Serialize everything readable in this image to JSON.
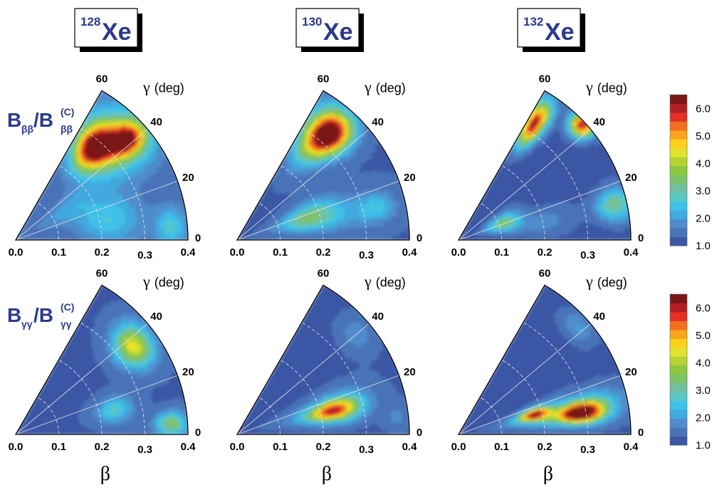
{
  "chart_data": {
    "type": "heatmap",
    "description_axes": {
      "radial_label": "β",
      "angular_label": "γ",
      "angular_unit": "(deg)",
      "radial_ticks": [
        "0.0",
        "0.1",
        "0.2",
        "0.3",
        "0.4"
      ],
      "angular_ticks": [
        "0",
        "20",
        "40",
        "60"
      ],
      "radial_range": [
        0,
        0.4
      ],
      "angular_range_deg": [
        0,
        60
      ]
    },
    "columns": [
      {
        "mass": "128",
        "element": "Xe"
      },
      {
        "mass": "130",
        "element": "Xe"
      },
      {
        "mass": "132",
        "element": "Xe"
      }
    ],
    "rows": [
      {
        "main": "B",
        "sub": "ββ",
        "sep": "/B",
        "sup": "(C)",
        "sub2": "ββ"
      },
      {
        "main": "B",
        "sub": "γγ",
        "sep": "/B",
        "sup": "(C)",
        "sub2": "γγ"
      }
    ],
    "colorbar": {
      "ticks": [
        "1.0",
        "2.0",
        "3.0",
        "4.0",
        "5.0",
        "6.0"
      ],
      "range": [
        1.0,
        6.5
      ],
      "colors": [
        "#3b57a5",
        "#4a73b8",
        "#4f8ccb",
        "#42a9de",
        "#3fc1e8",
        "#5ac7c5",
        "#72c0a0",
        "#7cc36a",
        "#8dc63f",
        "#b5d335",
        "#e3e22e",
        "#fbd11b",
        "#f8a51b",
        "#f37021",
        "#e43127",
        "#b21f24",
        "#7a1618"
      ]
    },
    "panels": [
      {
        "column": "128",
        "row": "ββ",
        "background": 1.4,
        "peaks": [
          {
            "beta": 0.28,
            "gamma": 50,
            "value": 6.1,
            "spread_b": 0.04,
            "spread_g": 6
          },
          {
            "beta": 0.35,
            "gamma": 42,
            "value": 4.8,
            "spread_b": 0.03,
            "spread_g": 4
          },
          {
            "beta": 0.32,
            "gamma": 44,
            "value": 3.6,
            "spread_b": 0.06,
            "spread_g": 9
          },
          {
            "beta": 0.22,
            "gamma": 12,
            "value": 2.6,
            "spread_b": 0.05,
            "spread_g": 9
          },
          {
            "beta": 0.36,
            "gamma": 5,
            "value": 2.7,
            "spread_b": 0.025,
            "spread_g": 5
          },
          {
            "beta": 0.15,
            "gamma": 30,
            "value": 2.2,
            "spread_b": 0.06,
            "spread_g": 8
          }
        ]
      },
      {
        "column": "130",
        "row": "ββ",
        "background": 1.3,
        "peaks": [
          {
            "beta": 0.33,
            "gamma": 48,
            "value": 5.3,
            "spread_b": 0.035,
            "spread_g": 5
          },
          {
            "beta": 0.3,
            "gamma": 52,
            "value": 4.5,
            "spread_b": 0.05,
            "spread_g": 6
          },
          {
            "beta": 0.17,
            "gamma": 18,
            "value": 3.2,
            "spread_b": 0.05,
            "spread_g": 7
          },
          {
            "beta": 0.33,
            "gamma": 13,
            "value": 2.3,
            "spread_b": 0.03,
            "spread_g": 4
          },
          {
            "beta": 0.25,
            "gamma": 14,
            "value": 1.9,
            "spread_b": 0.07,
            "spread_g": 6
          }
        ]
      },
      {
        "column": "132",
        "row": "ββ",
        "background": 1.2,
        "peaks": [
          {
            "beta": 0.32,
            "gamma": 57,
            "value": 6.2,
            "spread_b": 0.04,
            "spread_g": 3
          },
          {
            "beta": 0.39,
            "gamma": 43,
            "value": 6.0,
            "spread_b": 0.02,
            "spread_g": 3
          },
          {
            "beta": 0.11,
            "gamma": 21,
            "value": 3.4,
            "spread_b": 0.03,
            "spread_g": 7
          },
          {
            "beta": 0.37,
            "gamma": 13,
            "value": 3.3,
            "spread_b": 0.03,
            "spread_g": 4
          },
          {
            "beta": 0.2,
            "gamma": 12,
            "value": 1.8,
            "spread_b": 0.05,
            "spread_g": 6
          }
        ]
      },
      {
        "column": "128",
        "row": "γγ",
        "background": 1.3,
        "peaks": [
          {
            "beta": 0.34,
            "gamma": 37,
            "value": 4.5,
            "spread_b": 0.03,
            "spread_g": 6
          },
          {
            "beta": 0.235,
            "gamma": 14,
            "value": 2.8,
            "spread_b": 0.03,
            "spread_g": 5
          },
          {
            "beta": 0.36,
            "gamma": 4,
            "value": 3.6,
            "spread_b": 0.025,
            "spread_g": 3
          }
        ]
      },
      {
        "column": "130",
        "row": "γγ",
        "background": 1.2,
        "peaks": [
          {
            "beta": 0.23,
            "gamma": 14,
            "value": 5.2,
            "spread_b": 0.04,
            "spread_g": 4
          },
          {
            "beta": 0.21,
            "gamma": 16,
            "value": 2.2,
            "spread_b": 0.08,
            "spread_g": 7
          },
          {
            "beta": 0.37,
            "gamma": 6,
            "value": 1.7,
            "spread_b": 0.02,
            "spread_g": 4
          },
          {
            "beta": 0.36,
            "gamma": 40,
            "value": 1.8,
            "spread_b": 0.03,
            "spread_g": 6
          }
        ]
      },
      {
        "column": "132",
        "row": "γγ",
        "background": 1.2,
        "peaks": [
          {
            "beta": 0.29,
            "gamma": 10,
            "value": 6.3,
            "spread_b": 0.035,
            "spread_g": 3
          },
          {
            "beta": 0.18,
            "gamma": 15,
            "value": 5.2,
            "spread_b": 0.025,
            "spread_g": 3
          },
          {
            "beta": 0.25,
            "gamma": 12,
            "value": 3.2,
            "spread_b": 0.09,
            "spread_g": 5
          },
          {
            "beta": 0.37,
            "gamma": 42,
            "value": 2.0,
            "spread_b": 0.02,
            "spread_g": 5
          }
        ]
      }
    ]
  }
}
